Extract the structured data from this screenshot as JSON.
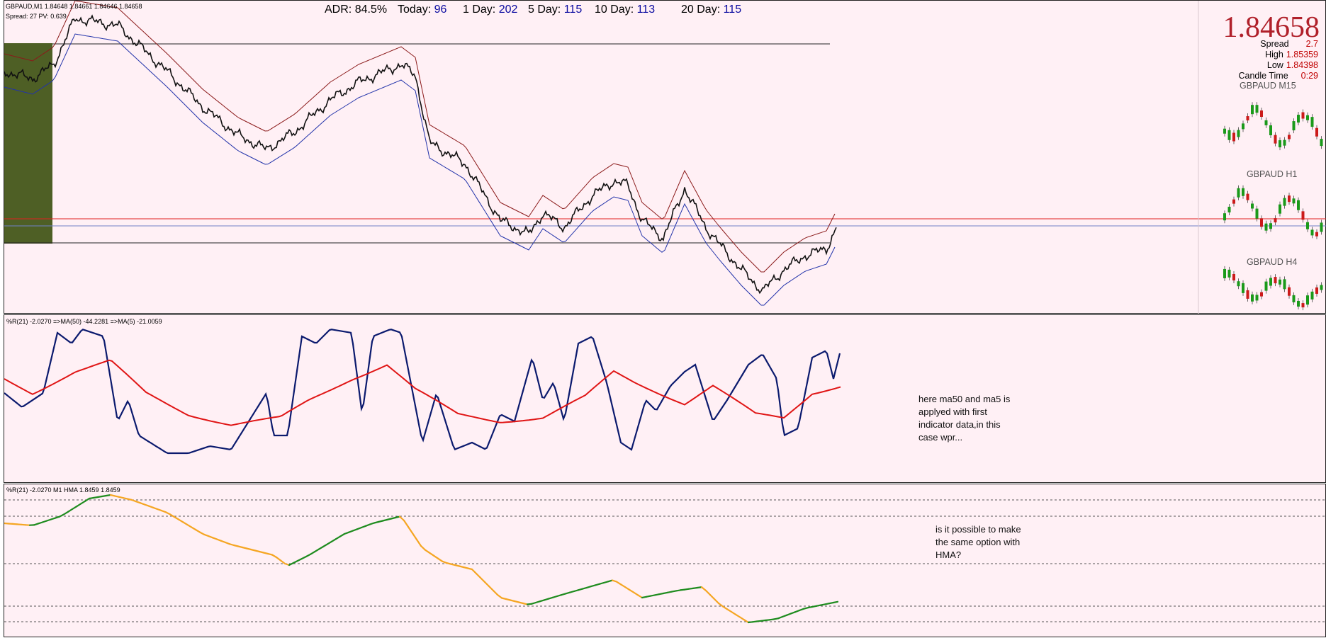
{
  "main": {
    "header_line1": "GBPAUD,M1  1.84648 1.84661 1.84646 1.84658",
    "header_line2": "Spread: 27   PV: 0.639",
    "adr": {
      "label": "ADR:",
      "value": "84.5%"
    },
    "today": {
      "label": "Today:",
      "value": "96"
    },
    "day1": {
      "label": "1 Day:",
      "value": "202"
    },
    "day5": {
      "label": "5 Day:",
      "value": "115"
    },
    "day10": {
      "label": "10 Day:",
      "value": "113"
    },
    "day20": {
      "label": "20 Day:",
      "value": "115"
    }
  },
  "price_panel": {
    "price": "1.84658",
    "spread_label": "Spread",
    "spread_value": "2.7",
    "high_label": "High",
    "high_value": "1.85359",
    "low_label": "Low",
    "low_value": "1.84398",
    "candle_label": "Candle Time",
    "candle_value": "0:29",
    "tf_m15": "GBPAUD M15",
    "tf_h1": "GBPAUD H1",
    "tf_h4": "GBPAUD H4"
  },
  "indicator1": {
    "header": "%R(21) -2.0270  =>MA(50) -44.2281  =>MA(5) -21.0059",
    "note": [
      "here ma50 and ma5 is",
      "applyed with first",
      "indicator data,in this",
      "case wpr..."
    ]
  },
  "indicator2": {
    "header": "%R(21) -2.0270  M1 HMA 1.8459 1.8459",
    "note": [
      "is it possible to make",
      "the same option with",
      "HMA?"
    ]
  },
  "colors": {
    "bg": "#fff0f5",
    "wpr": "#0b1a6e",
    "ma": "#e01515",
    "hma_up": "#1f8c1f",
    "hma_down": "#f5a623",
    "band_upper": "#8b1a1a",
    "band_lower": "#2233aa",
    "box": "#4e5f25"
  }
}
